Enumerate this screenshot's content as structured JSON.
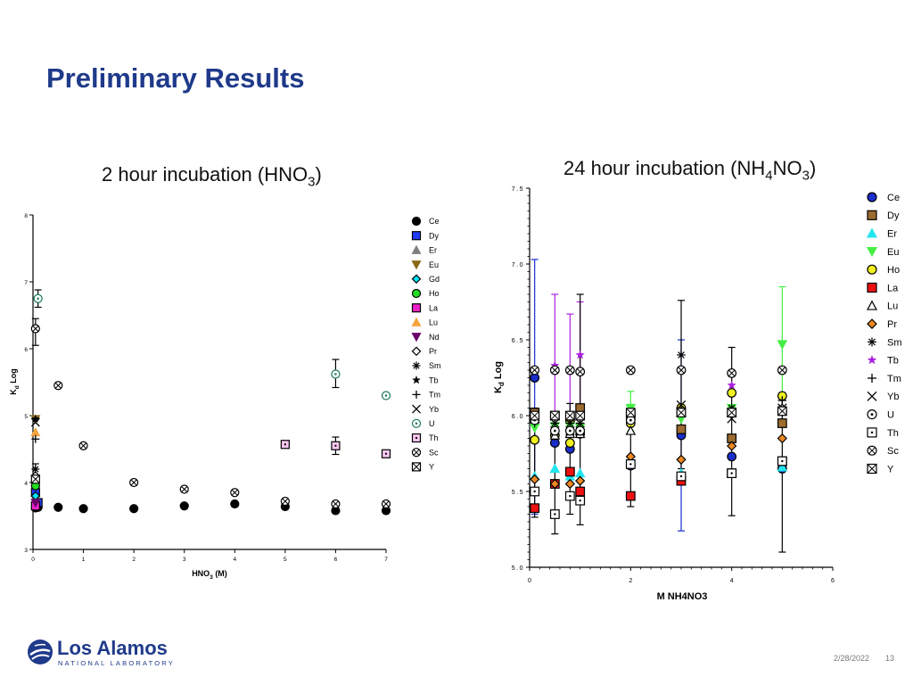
{
  "slide": {
    "title": "Preliminary Results",
    "date": "2/28/2022",
    "page": "13",
    "logo_main": "Los Alamos",
    "logo_sub": "NATIONAL LABORATORY"
  },
  "chart_data": [
    {
      "type": "scatter",
      "title_main": "2 hour incubation (HNO",
      "title_sub": "3",
      "title_end": ")",
      "xlabel_main": "HNO",
      "xlabel_sub": "3",
      "xlabel_end": " (M)",
      "ylabel_main": "K",
      "ylabel_sub": "d",
      "ylabel_end": " Log",
      "xlim": [
        0,
        7
      ],
      "ylim": [
        3,
        8
      ],
      "xticks": [
        "0",
        "1",
        "2",
        "3",
        "4",
        "5",
        "6",
        "7"
      ],
      "yticks": [
        "3",
        "4",
        "5",
        "6",
        "7",
        "8"
      ],
      "legend_position": "right",
      "series": [
        {
          "name": "Ce",
          "marker": "circle",
          "filled": true,
          "color": "#000000",
          "x": [
            0.05,
            0.1,
            0.5,
            1,
            2,
            3,
            4,
            5,
            6,
            7
          ],
          "y": [
            3.62,
            3.63,
            3.63,
            3.61,
            3.61,
            3.65,
            3.68,
            3.64,
            3.58,
            3.58
          ]
        },
        {
          "name": "Dy",
          "marker": "square",
          "filled": true,
          "color": "#1f3cff",
          "x": [
            0.05,
            0.1
          ],
          "y": [
            3.85,
            3.7
          ]
        },
        {
          "name": "Er",
          "marker": "triangle-up",
          "filled": true,
          "color": "#808080",
          "x": [
            0.05
          ],
          "y": [
            3.75
          ]
        },
        {
          "name": "Eu",
          "marker": "triangle-down",
          "filled": true,
          "color": "#8b6914",
          "x": [
            0.05
          ],
          "y": [
            4.95
          ]
        },
        {
          "name": "Gd",
          "marker": "diamond",
          "filled": true,
          "color": "#00e5ff",
          "x": [
            0.05
          ],
          "y": [
            3.8
          ]
        },
        {
          "name": "Ho",
          "marker": "circle",
          "filled": true,
          "color": "#22dd22",
          "x": [
            0.05
          ],
          "y": [
            3.95
          ]
        },
        {
          "name": "La",
          "marker": "square",
          "filled": true,
          "color": "#ee22cc",
          "x": [
            0.05
          ],
          "y": [
            3.65
          ]
        },
        {
          "name": "Lu",
          "marker": "triangle-up",
          "filled": true,
          "color": "#f4a43c",
          "x": [
            0.05
          ],
          "y": [
            4.75
          ]
        },
        {
          "name": "Nd",
          "marker": "triangle-down",
          "filled": true,
          "color": "#6a006a",
          "x": [
            0.05
          ],
          "y": [
            3.7
          ]
        },
        {
          "name": "Pr",
          "marker": "diamond",
          "filled": false,
          "color": "#000000",
          "x": [
            0.05
          ],
          "y": [
            4.1
          ]
        },
        {
          "name": "Sm",
          "marker": "asterisk",
          "filled": false,
          "color": "#000000",
          "x": [
            0.05
          ],
          "y": [
            4.2
          ]
        },
        {
          "name": "Tb",
          "marker": "star",
          "filled": true,
          "color": "#000000",
          "x": [
            0.05
          ],
          "y": [
            4.95
          ]
        },
        {
          "name": "Tm",
          "marker": "plus",
          "filled": false,
          "color": "#000000",
          "x": [
            0.05
          ],
          "y": [
            4.65
          ]
        },
        {
          "name": "Yb",
          "marker": "cross",
          "filled": false,
          "color": "#000000",
          "x": [
            0.05
          ],
          "y": [
            4.9
          ]
        },
        {
          "name": "U",
          "marker": "circle-dot",
          "filled": false,
          "color": "#1a7a5a",
          "x": [
            0.1,
            6,
            7
          ],
          "y": [
            6.75,
            5.62,
            5.3
          ]
        },
        {
          "name": "Th",
          "marker": "square-dot",
          "filled": false,
          "color": "#ee22cc",
          "x": [
            5,
            6,
            7
          ],
          "y": [
            4.57,
            4.55,
            4.43
          ]
        },
        {
          "name": "Sc",
          "marker": "circle-x",
          "filled": false,
          "color": "#000000",
          "x": [
            0.05,
            0.5,
            1,
            2,
            3,
            4,
            5,
            6,
            7
          ],
          "y": [
            6.3,
            5.45,
            4.55,
            4.0,
            3.9,
            3.85,
            3.72,
            3.68,
            3.68
          ]
        },
        {
          "name": "Y",
          "marker": "square-x",
          "filled": false,
          "color": "#000000",
          "x": [
            0.05
          ],
          "y": [
            4.05
          ]
        }
      ],
      "error_bars": [
        {
          "x": 0.1,
          "low": 6.62,
          "high": 6.88
        },
        {
          "x": 0.05,
          "low": 6.05,
          "high": 6.45
        },
        {
          "x": 6,
          "low": 5.42,
          "high": 5.84
        },
        {
          "x": 6,
          "low": 4.42,
          "high": 4.68
        },
        {
          "x": 0.05,
          "low": 4.05,
          "high": 4.28
        }
      ]
    },
    {
      "type": "scatter",
      "title_main": "24 hour incubation (NH",
      "title_sub1": "4",
      "title_mid": "NO",
      "title_sub2": "3",
      "title_end": ")",
      "xlabel": "M NH4NO3",
      "ylabel_main": "K",
      "ylabel_sub": "d",
      "ylabel_end": " Log",
      "xlim": [
        0,
        6
      ],
      "ylim": [
        5.0,
        7.5
      ],
      "xticks": [
        "0",
        "2",
        "4",
        "6"
      ],
      "yticks": [
        "5.0",
        "5.5",
        "6.0",
        "6.5",
        "7.0",
        "7.5"
      ],
      "legend_position": "right",
      "series": [
        {
          "name": "Ce",
          "marker": "circle",
          "filled": true,
          "color": "#1a2ecc",
          "x": [
            0.1,
            0.5,
            0.8,
            1,
            2,
            3,
            4,
            5
          ],
          "y": [
            6.25,
            5.82,
            5.78,
            5.9,
            5.67,
            5.87,
            5.73,
            5.65
          ]
        },
        {
          "name": "Dy",
          "marker": "square",
          "filled": true,
          "color": "#9b6b2f",
          "x": [
            0.1,
            0.5,
            0.8,
            1,
            2,
            3,
            4,
            5
          ],
          "y": [
            6.02,
            6.0,
            5.98,
            6.05,
            6.0,
            5.91,
            5.85,
            5.95
          ]
        },
        {
          "name": "Er",
          "marker": "triangle-up",
          "filled": true,
          "color": "#22e5ee",
          "x": [
            0.1,
            0.5,
            0.8,
            1,
            2,
            3,
            4,
            5
          ],
          "y": [
            5.6,
            5.65,
            5.6,
            5.62,
            5.7,
            5.62,
            5.62,
            5.66
          ]
        },
        {
          "name": "Eu",
          "marker": "triangle-down",
          "filled": true,
          "color": "#44ee44",
          "x": [
            0.1,
            0.5,
            0.8,
            1,
            2,
            3,
            4,
            5
          ],
          "y": [
            5.92,
            5.93,
            5.93,
            5.92,
            6.05,
            5.98,
            6.05,
            6.47
          ]
        },
        {
          "name": "Ho",
          "marker": "circle",
          "filled": true,
          "color": "#f0f020",
          "x": [
            0.1,
            0.5,
            0.8,
            1,
            2,
            3,
            4,
            5
          ],
          "y": [
            5.84,
            5.87,
            5.82,
            5.88,
            5.95,
            6.05,
            6.15,
            6.13
          ]
        },
        {
          "name": "La",
          "marker": "square",
          "filled": true,
          "color": "#ee1111",
          "x": [
            0.1,
            0.5,
            0.8,
            1,
            2,
            3,
            4,
            5
          ],
          "y": [
            5.39,
            5.55,
            5.63,
            5.5,
            5.47,
            5.57,
            5.62,
            5.7
          ]
        },
        {
          "name": "Lu",
          "marker": "triangle-up",
          "filled": false,
          "color": "#000000",
          "x": [
            0.1,
            0.5,
            0.8,
            1,
            2,
            3,
            4,
            5
          ],
          "y": [
            5.98,
            5.87,
            5.88,
            5.88,
            5.9,
            6.02,
            6.02,
            6.05
          ]
        },
        {
          "name": "Pr",
          "marker": "diamond",
          "filled": true,
          "color": "#ee8822",
          "x": [
            0.1,
            0.5,
            0.8,
            1,
            2,
            3,
            4,
            5
          ],
          "y": [
            5.58,
            5.55,
            5.55,
            5.57,
            5.73,
            5.71,
            5.8,
            5.85
          ]
        },
        {
          "name": "Sm",
          "marker": "asterisk",
          "filled": false,
          "color": "#000000",
          "x": [
            0.1,
            0.5,
            0.8,
            1,
            2,
            3,
            4,
            5
          ],
          "y": [
            6.0,
            5.95,
            5.95,
            5.95,
            6.02,
            6.4,
            6.05,
            6.3
          ]
        },
        {
          "name": "Tb",
          "marker": "star",
          "filled": true,
          "color": "#aa22dd",
          "x": [
            0.1,
            0.5,
            0.8,
            1,
            2,
            3,
            4,
            5
          ],
          "y": [
            6.0,
            6.33,
            6.3,
            6.4,
            6.0,
            6.03,
            6.2,
            6.3
          ]
        },
        {
          "name": "Tm",
          "marker": "plus",
          "filled": false,
          "color": "#000000",
          "x": [
            0.1,
            0.5,
            0.8,
            1,
            2,
            3,
            4,
            5
          ],
          "y": [
            5.95,
            5.9,
            5.9,
            5.95,
            6.0,
            6.05,
            6.0,
            6.1
          ]
        },
        {
          "name": "Yb",
          "marker": "cross",
          "filled": false,
          "color": "#000000",
          "x": [
            0.1,
            0.5,
            0.8,
            1,
            2,
            3,
            4,
            5
          ],
          "y": [
            5.98,
            5.9,
            5.9,
            5.9,
            6.0,
            6.07,
            5.98,
            6.05
          ]
        },
        {
          "name": "U",
          "marker": "circle-dot",
          "filled": false,
          "color": "#000000",
          "x": [
            0.1,
            0.5,
            0.8,
            1,
            2,
            3,
            4,
            5
          ],
          "y": [
            5.97,
            5.9,
            5.9,
            5.9,
            5.97,
            6.02,
            6.02,
            6.03
          ]
        },
        {
          "name": "Th",
          "marker": "square-dot",
          "filled": false,
          "color": "#000000",
          "x": [
            0.1,
            0.5,
            0.8,
            1,
            2,
            3,
            4,
            5
          ],
          "y": [
            5.5,
            5.35,
            5.47,
            5.44,
            5.68,
            5.6,
            5.62,
            5.7
          ]
        },
        {
          "name": "Sc",
          "marker": "circle-x",
          "filled": false,
          "color": "#000000",
          "x": [
            0.1,
            0.5,
            0.8,
            1,
            2,
            3,
            4,
            5
          ],
          "y": [
            6.3,
            6.3,
            6.3,
            6.29,
            6.3,
            6.3,
            6.28,
            6.3
          ]
        },
        {
          "name": "Y",
          "marker": "square-x",
          "filled": false,
          "color": "#000000",
          "x": [
            0.1,
            0.5,
            0.8,
            1,
            2,
            3,
            4,
            5
          ],
          "y": [
            6.0,
            6.0,
            6.0,
            6.0,
            6.02,
            6.02,
            6.02,
            6.03
          ]
        }
      ],
      "error_bars": [
        {
          "x": 0.1,
          "low": 5.35,
          "high": 7.03,
          "color": "#1a2ecc"
        },
        {
          "x": 0.1,
          "low": 5.33,
          "high": 6.05,
          "color": "#000000"
        },
        {
          "x": 0.5,
          "low": 5.85,
          "high": 6.8,
          "color": "#aa22dd"
        },
        {
          "x": 0.5,
          "low": 5.22,
          "high": 5.92,
          "color": "#000000"
        },
        {
          "x": 0.8,
          "low": 5.9,
          "high": 6.67,
          "color": "#aa22dd"
        },
        {
          "x": 0.8,
          "low": 5.35,
          "high": 6.08,
          "color": "#000000"
        },
        {
          "x": 1,
          "low": 5.9,
          "high": 6.75,
          "color": "#aa22dd"
        },
        {
          "x": 1,
          "low": 5.28,
          "high": 6.8,
          "color": "#000000"
        },
        {
          "x": 2,
          "low": 5.9,
          "high": 6.16,
          "color": "#44ee44"
        },
        {
          "x": 2,
          "low": 5.4,
          "high": 5.98,
          "color": "#000000"
        },
        {
          "x": 3,
          "low": 5.24,
          "high": 6.5,
          "color": "#1a2ecc"
        },
        {
          "x": 3,
          "low": 5.65,
          "high": 6.76,
          "color": "#000000"
        },
        {
          "x": 4,
          "low": 5.34,
          "high": 6.45,
          "color": "#000000"
        },
        {
          "x": 5,
          "low": 6.05,
          "high": 6.85,
          "color": "#44ee44"
        },
        {
          "x": 5,
          "low": 5.1,
          "high": 6.15,
          "color": "#000000"
        }
      ]
    }
  ]
}
